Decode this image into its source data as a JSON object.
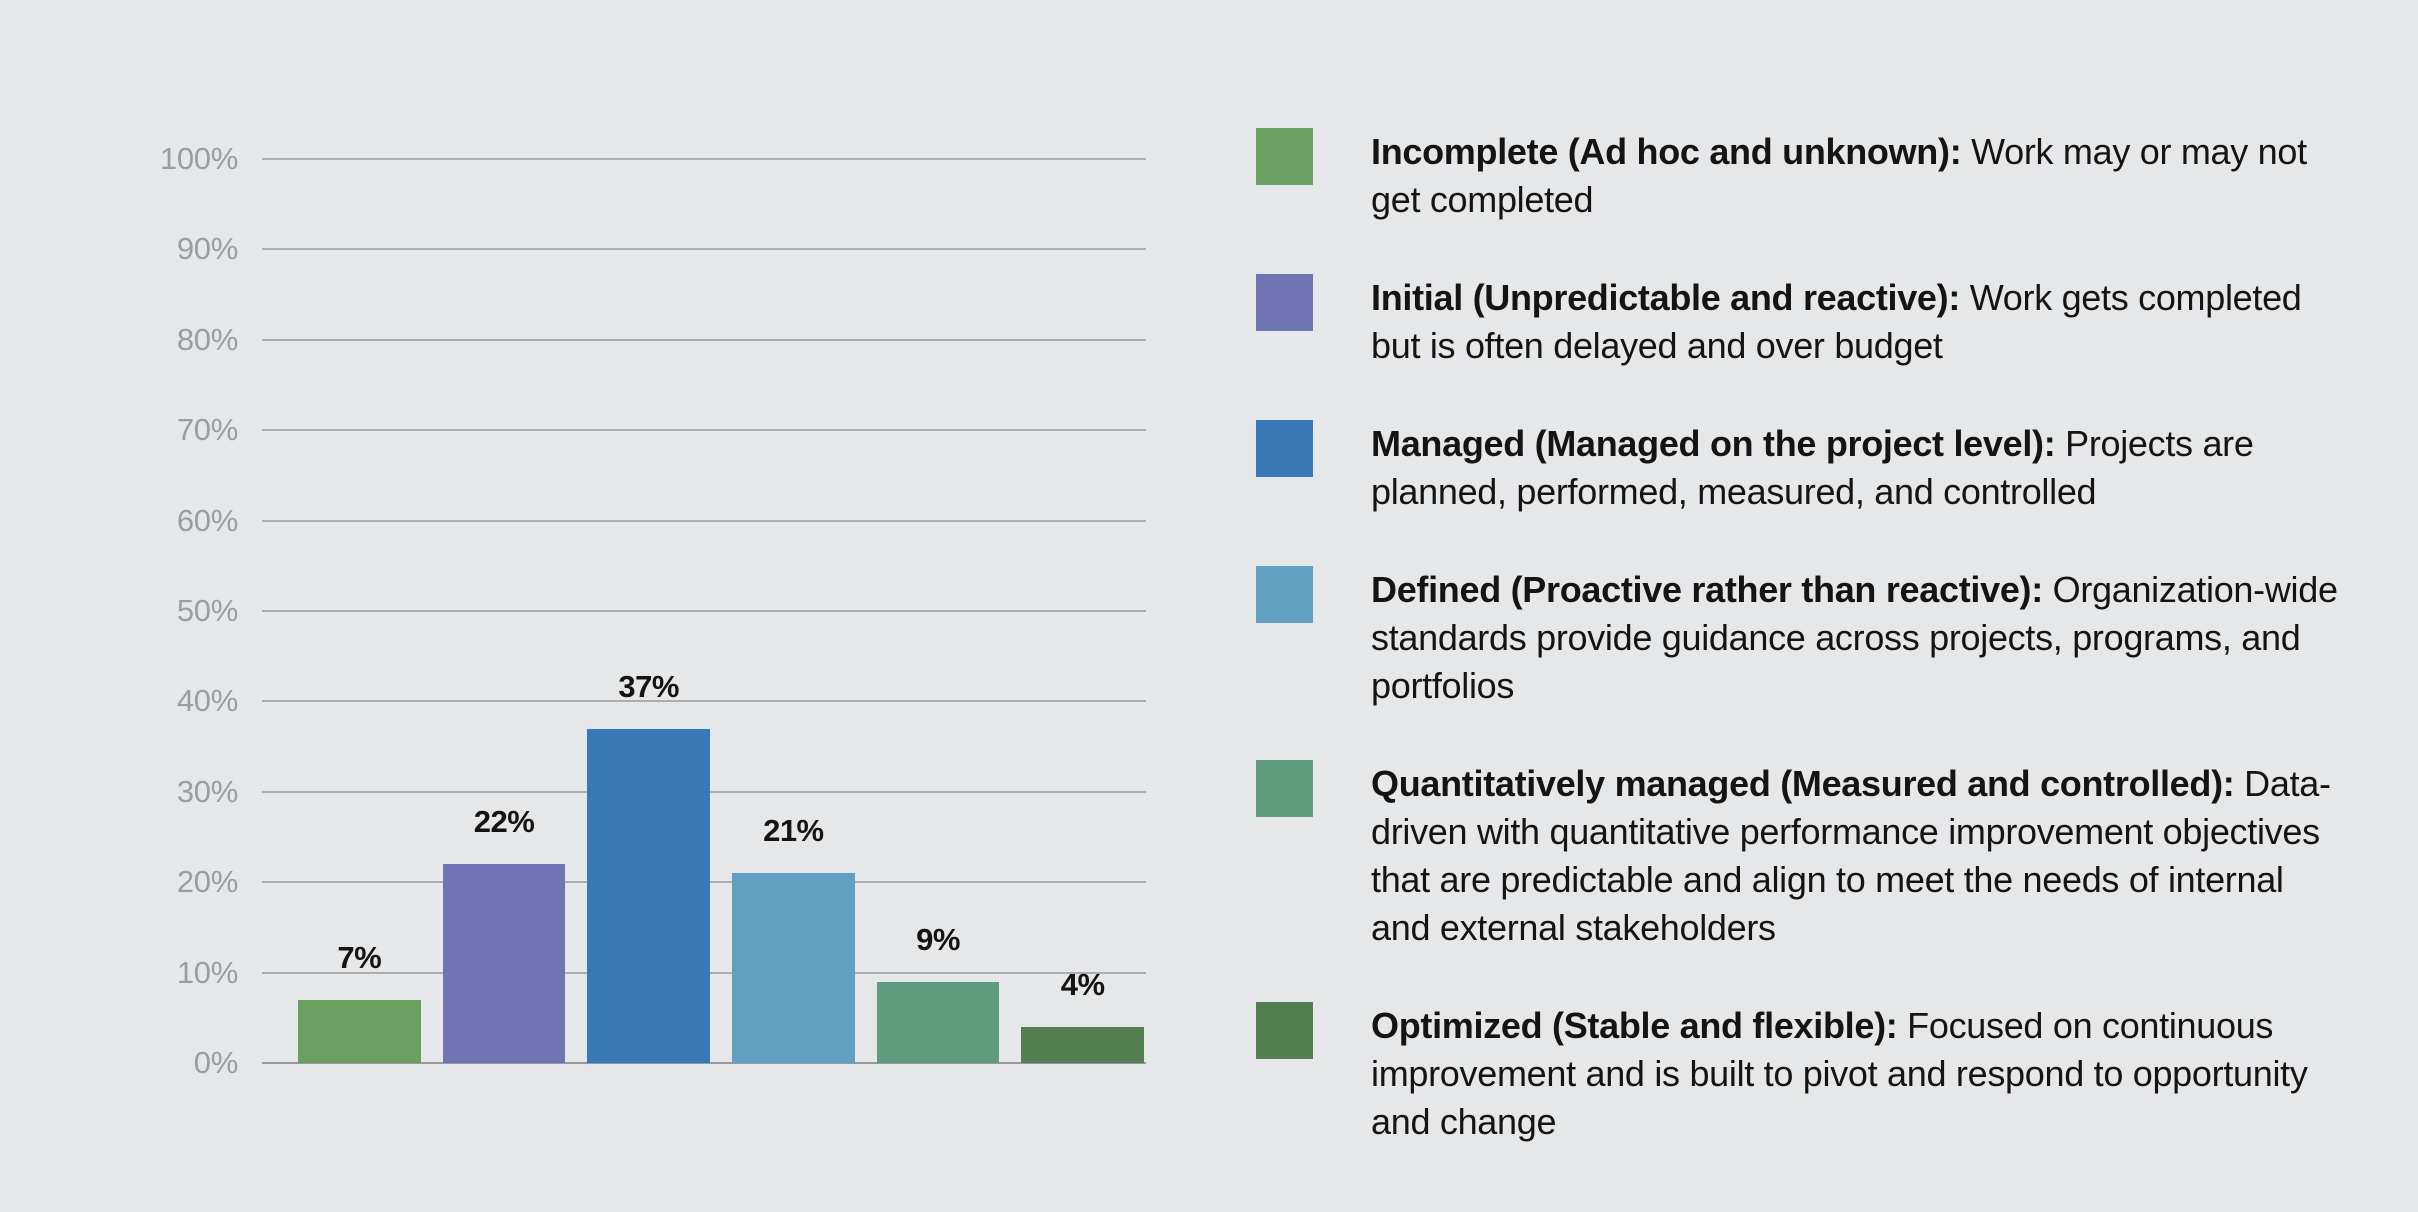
{
  "page": {
    "background": "#e6e7e9"
  },
  "chart_data": {
    "type": "bar",
    "title": "",
    "xlabel": "",
    "ylabel": "",
    "categories": [
      "Incomplete (Ad hoc and unknown)",
      "Initial (Unpredictable and reactive)",
      "Managed (Managed on the project level)",
      "Defined (Proactive rather than reactive)",
      "Quantitatively managed (Measured and controlled)",
      "Optimized (Stable and flexible)"
    ],
    "values": [
      7,
      22,
      37,
      21,
      9,
      4
    ],
    "value_labels": [
      "7%",
      "22%",
      "37%",
      "21%",
      "9%",
      "4%"
    ],
    "bar_colors": [
      "#6B9F62",
      "#6F74B4",
      "#3A79B7",
      "#62A0C2",
      "#5F9B7D",
      "#537E50"
    ],
    "ylim": [
      0,
      100
    ],
    "yticks": [
      0,
      10,
      20,
      30,
      40,
      50,
      60,
      70,
      80,
      90,
      100
    ],
    "ytick_labels": [
      "0%",
      "10%",
      "20%",
      "30%",
      "40%",
      "50%",
      "60%",
      "70%",
      "80%",
      "90%",
      "100%"
    ],
    "grid": "horizontal",
    "legend_position": "right"
  },
  "legend": {
    "items": [
      {
        "swatch_color": "#6B9F62",
        "title": "Incomplete (Ad hoc and unknown):",
        "description": "Work may or may not get completed"
      },
      {
        "swatch_color": "#6F74B4",
        "title": "Initial (Unpredictable and reactive):",
        "description": "Work gets completed but is often delayed and over budget"
      },
      {
        "swatch_color": "#3A79B7",
        "title": "Managed (Managed on the project level):",
        "description": "Projects are planned, performed, measured, and controlled"
      },
      {
        "swatch_color": "#62A0C2",
        "title": "Defined (Proactive rather than reactive):",
        "description": "Organization-wide standards provide guidance across projects, programs, and portfolios"
      },
      {
        "swatch_color": "#5F9B7D",
        "title": "Quantitatively managed (Measured and controlled):",
        "description": "Data-driven with quantitative performance improvement objectives that are predictable and align to meet the needs of internal and external stakeholders"
      },
      {
        "swatch_color": "#537E50",
        "title": "Optimized (Stable and flexible):",
        "description": "Focused on continuous improvement and is built to pivot and respond to opportunity and change"
      }
    ]
  },
  "style": {
    "grid_color": "#abadaf",
    "axis_line_color": "#97999b",
    "tick_label_color": "#9b9ea1",
    "text_color": "#141414"
  }
}
